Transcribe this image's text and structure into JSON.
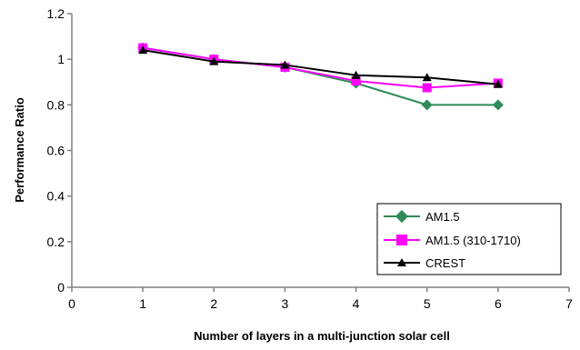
{
  "chart_data": {
    "type": "line",
    "title": "",
    "xlabel": "Number of layers in a multi-junction solar cell",
    "ylabel": "Performance Ratio",
    "xlim": [
      0,
      7
    ],
    "ylim": [
      0,
      1.2
    ],
    "x_ticks": [
      "0",
      "1",
      "2",
      "3",
      "4",
      "5",
      "6",
      "7"
    ],
    "y_ticks": [
      "0",
      "0.2",
      "0.4",
      "0.6",
      "0.8",
      "1",
      "1.2"
    ],
    "grid": false,
    "legend_position": "bottom-right",
    "series": [
      {
        "name": "AM1.5",
        "color": "#2e8b57",
        "marker": "diamond",
        "x": [
          1,
          2,
          3,
          4,
          5,
          6
        ],
        "y": [
          1.05,
          1.0,
          0.965,
          0.895,
          0.8,
          0.8
        ]
      },
      {
        "name": "AM1.5 (310-1710)",
        "color": "#ff00ff",
        "marker": "square",
        "x": [
          1,
          2,
          3,
          4,
          5,
          6
        ],
        "y": [
          1.05,
          1.0,
          0.965,
          0.905,
          0.875,
          0.895
        ]
      },
      {
        "name": "CREST",
        "color": "#000000",
        "marker": "triangle",
        "x": [
          1,
          2,
          3,
          4,
          5,
          6
        ],
        "y": [
          1.04,
          0.99,
          0.975,
          0.93,
          0.92,
          0.89
        ]
      }
    ]
  }
}
